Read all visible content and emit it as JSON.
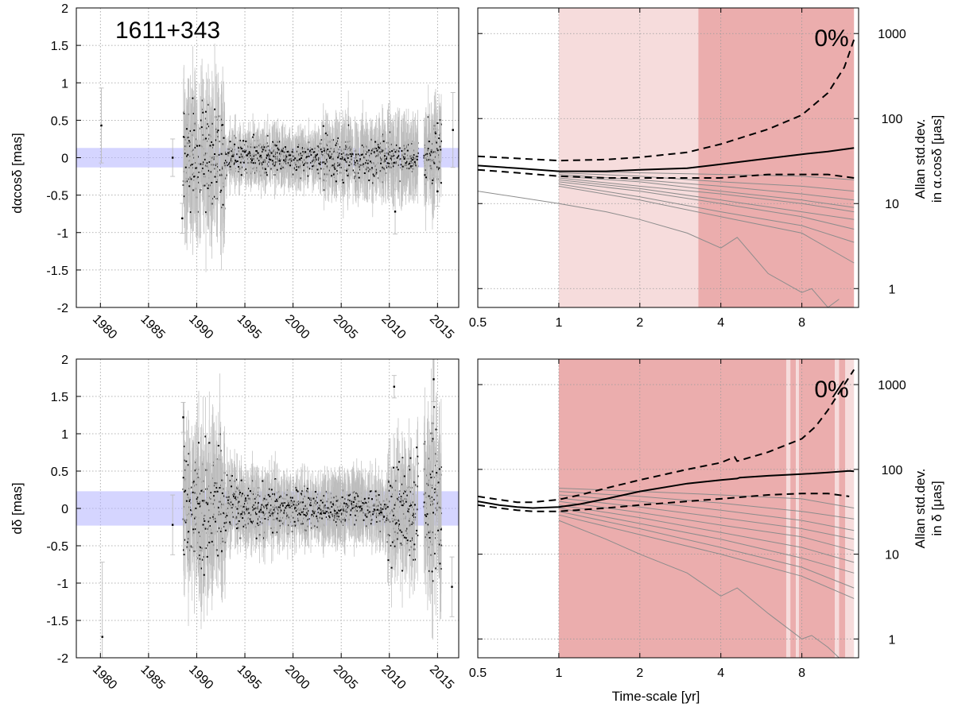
{
  "source_label": "1611+343",
  "colors": {
    "band": "#b3b3ff",
    "light_region": "#f6dcdc",
    "dark_region": "#ebadad",
    "points": "#000000",
    "errorbars": "#bdbdbd",
    "grid": "#9a9a9a",
    "thin_curves": "#8c8c8c"
  },
  "chart_data": [
    {
      "id": "ra_timeseries",
      "type": "scatter",
      "ylabel": "dαcosδ [mas]",
      "xlabel": "",
      "xlim": [
        1977.5,
        2017.2
      ],
      "ylim": [
        -2,
        2
      ],
      "x_ticks": [
        "1980",
        "1985",
        "1990",
        "1995",
        "2000",
        "2005",
        "2010",
        "2015"
      ],
      "y_ticks": [
        "-2",
        "-1.5",
        "-1",
        "-0.5",
        "0",
        "0.5",
        "1",
        "1.5",
        "2"
      ],
      "grid": true,
      "band": [
        -0.13,
        0.13
      ],
      "segments": [
        {
          "x": [
            1988.6,
            1993.0
          ],
          "spread": 0.3,
          "err": 0.55
        },
        {
          "x": [
            1993.0,
            1998.5
          ],
          "spread": 0.11,
          "err": 0.22
        },
        {
          "x": [
            1998.5,
            2003.0
          ],
          "spread": 0.1,
          "err": 0.22
        },
        {
          "x": [
            2003.0,
            2009.8
          ],
          "spread": 0.13,
          "err": 0.3
        },
        {
          "x": [
            2009.8,
            2013.0
          ],
          "spread": 0.1,
          "err": 0.35
        },
        {
          "x": [
            2013.6,
            2015.4
          ],
          "spread": 0.2,
          "err": 0.4
        }
      ],
      "isolated_points": [
        {
          "x": 1980.1,
          "y": 0.43,
          "err": 0.5
        },
        {
          "x": 1987.5,
          "y": 0.0,
          "err": 0.25
        },
        {
          "x": 1988.5,
          "y": -0.81,
          "err": 0.2
        },
        {
          "x": 2010.6,
          "y": -0.72,
          "err": 0.3
        },
        {
          "x": 2015.0,
          "y": -0.45,
          "err": 0.2
        },
        {
          "x": 2016.6,
          "y": 0.37,
          "err": 0.5
        }
      ]
    },
    {
      "id": "ra_allan",
      "type": "line",
      "ylabel": "Allan std.dev. in α.cosδ [μas]",
      "xlabel": "",
      "xscale": "log2",
      "yscale": "log",
      "xlim": [
        0.5,
        13
      ],
      "ylim": [
        0.6,
        2000
      ],
      "x_ticks": [
        "0.5",
        "1",
        "2",
        "4",
        "8"
      ],
      "x_tick_values": [
        0.5,
        1,
        2,
        4,
        8
      ],
      "y_ticks": [
        "1",
        "10",
        "100",
        "1000"
      ],
      "y_tick_values": [
        1,
        10,
        100,
        1000
      ],
      "grid": true,
      "percent_label": "0%",
      "regions": [
        {
          "from": 1.0,
          "to": 3.3,
          "shade": "light"
        },
        {
          "from": 3.3,
          "to": 12.5,
          "shade": "dark"
        }
      ],
      "series": [
        {
          "style": "solid",
          "x": [
            0.5,
            0.7,
            1.0,
            1.5,
            2.0,
            3.0,
            4.0,
            6.0,
            8.0,
            10.0,
            12.5
          ],
          "y": [
            28,
            26,
            24,
            24,
            25,
            26,
            29,
            34,
            38,
            41,
            45
          ]
        },
        {
          "style": "dashed",
          "x": [
            0.5,
            0.7,
            1.0,
            1.5,
            2.0,
            3.0,
            4.0,
            6.0,
            8.0,
            10.0,
            11.5,
            12.5
          ],
          "y": [
            36,
            34,
            32,
            33,
            35,
            40,
            50,
            75,
            110,
            200,
            400,
            850
          ]
        },
        {
          "style": "dashed",
          "x": [
            0.5,
            0.7,
            1.0,
            1.5,
            2.0,
            3.0,
            4.0,
            6.0,
            8.0,
            10.0,
            12.5
          ],
          "y": [
            25,
            23,
            21,
            20,
            20,
            20,
            20,
            22,
            22,
            22,
            20
          ]
        }
      ],
      "thin_series": [
        {
          "x": [
            1.0,
            2.0,
            4.0,
            8.0,
            12.5
          ],
          "y": [
            24,
            23,
            22,
            21,
            19
          ]
        },
        {
          "x": [
            1.0,
            2.0,
            4.0,
            8.0,
            12.5
          ],
          "y": [
            23,
            21,
            18,
            16,
            14
          ]
        },
        {
          "x": [
            1.0,
            2.0,
            4.0,
            8.0,
            12.5
          ],
          "y": [
            22,
            19,
            16,
            13,
            11
          ]
        },
        {
          "x": [
            1.0,
            2.0,
            4.0,
            8.0,
            12.5
          ],
          "y": [
            21,
            18,
            14,
            11,
            9
          ]
        },
        {
          "x": [
            1.0,
            2.0,
            4.0,
            8.0,
            12.5
          ],
          "y": [
            20,
            16,
            13,
            10,
            8
          ]
        },
        {
          "x": [
            1.0,
            2.0,
            4.0,
            8.0,
            12.5
          ],
          "y": [
            19,
            15,
            11,
            8,
            6.5
          ]
        },
        {
          "x": [
            1.0,
            2.0,
            4.0,
            8.0,
            12.5
          ],
          "y": [
            18,
            14,
            10,
            7,
            5
          ]
        },
        {
          "x": [
            1.0,
            2.0,
            4.0,
            8.0,
            12.5
          ],
          "y": [
            17,
            12,
            8,
            5.5,
            3.5
          ]
        },
        {
          "x": [
            1.0,
            2.0,
            4.0,
            8.0,
            12.5
          ],
          "y": [
            16,
            11,
            7,
            4.5,
            2.0
          ]
        },
        {
          "x": [
            0.5,
            1.0,
            1.5,
            2.0,
            3.0,
            4.0,
            4.6,
            6.0,
            8.0,
            8.7,
            10.0,
            11.0
          ],
          "y": [
            14,
            10,
            8,
            6.5,
            4.5,
            3,
            4,
            1.5,
            0.9,
            1.0,
            0.6,
            0.75
          ]
        }
      ]
    },
    {
      "id": "dec_timeseries",
      "type": "scatter",
      "ylabel": "dδ [mas]",
      "xlabel": "",
      "xlim": [
        1977.5,
        2017.2
      ],
      "ylim": [
        -2,
        2
      ],
      "x_ticks": [
        "1980",
        "1985",
        "1990",
        "1995",
        "2000",
        "2005",
        "2010",
        "2015"
      ],
      "y_ticks": [
        "-2",
        "-1.5",
        "-1",
        "-0.5",
        "0",
        "0.5",
        "1",
        "1.5",
        "2"
      ],
      "grid": true,
      "band": [
        -0.23,
        0.23
      ],
      "segments": [
        {
          "x": [
            1988.6,
            1993.0
          ],
          "spread": 0.35,
          "err": 0.6
        },
        {
          "x": [
            1993.0,
            1998.5
          ],
          "spread": 0.15,
          "err": 0.3
        },
        {
          "x": [
            1998.5,
            2003.0
          ],
          "spread": 0.12,
          "err": 0.25
        },
        {
          "x": [
            2003.0,
            2009.8
          ],
          "spread": 0.1,
          "err": 0.3
        },
        {
          "x": [
            2009.8,
            2013.0
          ],
          "spread": 0.3,
          "err": 0.45
        },
        {
          "x": [
            2013.6,
            2015.4
          ],
          "spread": 0.45,
          "err": 0.6
        }
      ],
      "isolated_points": [
        {
          "x": 1980.2,
          "y": -1.72,
          "err": 1.0
        },
        {
          "x": 1987.5,
          "y": -0.22,
          "err": 0.4
        },
        {
          "x": 1988.6,
          "y": 1.22,
          "err": 0.2
        },
        {
          "x": 2010.5,
          "y": 1.63,
          "err": 0.15
        },
        {
          "x": 2014.6,
          "y": 1.73,
          "err": 0.3
        },
        {
          "x": 2016.5,
          "y": -1.05,
          "err": 0.4
        }
      ]
    },
    {
      "id": "dec_allan",
      "type": "line",
      "ylabel": "Allan std.dev. in δ [μas]",
      "xlabel": "Time-scale [yr]",
      "xscale": "log2",
      "yscale": "log",
      "xlim": [
        0.5,
        13
      ],
      "ylim": [
        0.6,
        2000
      ],
      "x_ticks": [
        "0.5",
        "1",
        "2",
        "4",
        "8"
      ],
      "x_tick_values": [
        0.5,
        1,
        2,
        4,
        8
      ],
      "y_ticks": [
        "1",
        "10",
        "100",
        "1000"
      ],
      "y_tick_values": [
        1,
        10,
        100,
        1000
      ],
      "grid": true,
      "percent_label": "0%",
      "regions": [
        {
          "from": 1.0,
          "to": 7.0,
          "shade": "dark"
        },
        {
          "from": 7.0,
          "to": 7.25,
          "shade": "light"
        },
        {
          "from": 7.25,
          "to": 7.6,
          "shade": "dark"
        },
        {
          "from": 7.6,
          "to": 7.8,
          "shade": "light"
        },
        {
          "from": 7.8,
          "to": 10.6,
          "shade": "dark"
        },
        {
          "from": 10.6,
          "to": 11.0,
          "shade": "light"
        },
        {
          "from": 11.0,
          "to": 11.6,
          "shade": "dark"
        },
        {
          "from": 11.6,
          "to": 12.5,
          "shade": "light"
        }
      ],
      "series": [
        {
          "style": "solid",
          "x": [
            0.5,
            0.6,
            0.7,
            0.8,
            1.0,
            1.2,
            1.5,
            2.0,
            3.0,
            4.0,
            4.6,
            4.7,
            6.0,
            8.0,
            10.0,
            12.0,
            12.5
          ],
          "y": [
            42,
            38,
            36,
            35,
            36,
            39,
            45,
            55,
            68,
            75,
            78,
            80,
            84,
            88,
            92,
            96,
            95
          ]
        },
        {
          "style": "dashed",
          "x": [
            0.5,
            0.6,
            0.7,
            0.8,
            1.0,
            1.2,
            1.5,
            2.0,
            3.0,
            4.0,
            4.5,
            4.6,
            6.0,
            8.0,
            9.0,
            10.0,
            11.0,
            12.5
          ],
          "y": [
            48,
            44,
            41,
            41,
            44,
            50,
            60,
            75,
            100,
            120,
            140,
            125,
            160,
            230,
            320,
            500,
            800,
            1500
          ]
        },
        {
          "style": "dashed",
          "x": [
            0.5,
            0.6,
            0.7,
            0.8,
            1.0,
            1.5,
            2.0,
            3.0,
            4.0,
            6.0,
            8.0,
            10.0,
            12.0
          ],
          "y": [
            38,
            35,
            33,
            32,
            32,
            35,
            38,
            42,
            45,
            50,
            52,
            52,
            48
          ]
        }
      ],
      "thin_series": [
        {
          "x": [
            1.0,
            2.0,
            4.0,
            8.0,
            12.5
          ],
          "y": [
            60,
            55,
            50,
            45,
            35
          ]
        },
        {
          "x": [
            1.0,
            2.0,
            4.0,
            8.0,
            12.5
          ],
          "y": [
            55,
            48,
            40,
            32,
            26
          ]
        },
        {
          "x": [
            1.0,
            2.0,
            4.0,
            8.0,
            12.5
          ],
          "y": [
            50,
            42,
            33,
            25,
            19
          ]
        },
        {
          "x": [
            1.0,
            2.0,
            4.0,
            8.0,
            12.5
          ],
          "y": [
            46,
            36,
            27,
            20,
            15
          ]
        },
        {
          "x": [
            1.0,
            2.0,
            4.0,
            8.0,
            12.5
          ],
          "y": [
            42,
            31,
            22,
            16,
            11
          ]
        },
        {
          "x": [
            1.0,
            2.0,
            4.0,
            8.0,
            12.5
          ],
          "y": [
            38,
            27,
            18,
            12,
            8
          ]
        },
        {
          "x": [
            1.0,
            2.0,
            4.0,
            8.0,
            12.5
          ],
          "y": [
            35,
            23,
            15,
            9,
            6
          ]
        },
        {
          "x": [
            1.0,
            2.0,
            4.0,
            8.0,
            12.5
          ],
          "y": [
            32,
            20,
            12,
            7,
            4
          ]
        },
        {
          "x": [
            1.0,
            2.0,
            4.0,
            8.0,
            12.5
          ],
          "y": [
            29,
            17,
            10,
            5.5,
            3
          ]
        },
        {
          "x": [
            1.0,
            1.5,
            2.0,
            3.0,
            4.0,
            4.6,
            6.0,
            8.0,
            8.7,
            10.0,
            11.0
          ],
          "y": [
            25,
            15,
            10,
            6,
            3.2,
            4.0,
            2,
            1.0,
            1.1,
            0.8,
            0.6
          ]
        }
      ]
    }
  ]
}
